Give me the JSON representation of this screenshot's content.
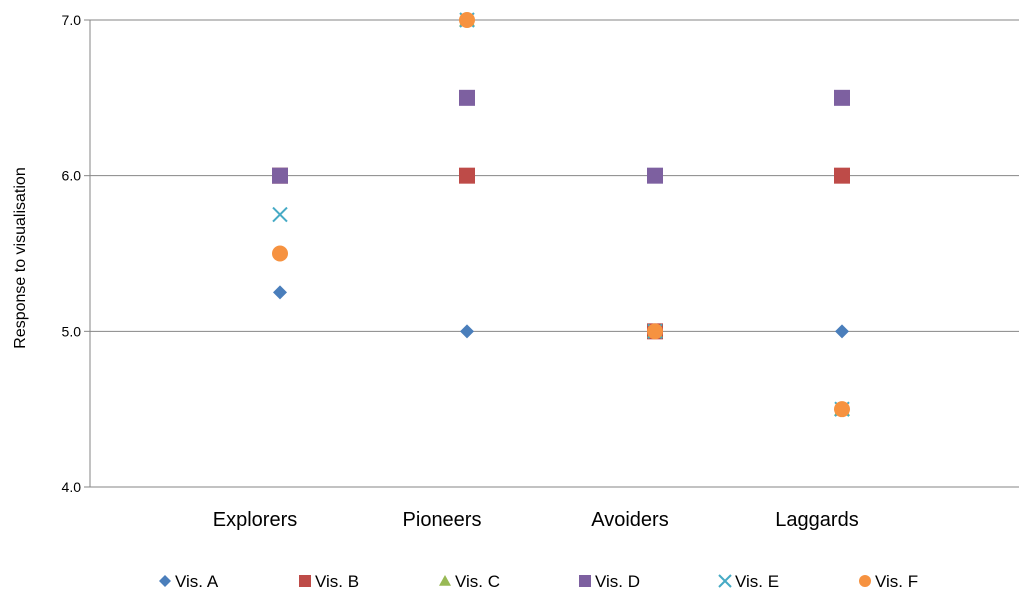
{
  "chart_data": {
    "type": "scatter",
    "title": "",
    "xlabel": "",
    "ylabel": "Response to visualisation",
    "categories": [
      "Explorers",
      "Pioneers",
      "Avoiders",
      "Laggards"
    ],
    "ylim": [
      4.0,
      7.0
    ],
    "yticks": [
      "4.0",
      "5.0",
      "6.0",
      "7.0"
    ],
    "grid": true,
    "legend_position": "bottom",
    "series": [
      {
        "name": "Vis. A",
        "marker": "diamond",
        "color": "#4a7ebb",
        "values": [
          5.25,
          5.0,
          5.0,
          5.0
        ]
      },
      {
        "name": "Vis. B",
        "marker": "square",
        "color": "#be4b48",
        "values": [
          6.0,
          6.0,
          5.0,
          6.0
        ]
      },
      {
        "name": "Vis. C",
        "marker": "triangle",
        "color": "#98b954",
        "values": [
          6.0,
          7.0,
          5.0,
          4.5
        ]
      },
      {
        "name": "Vis. D",
        "marker": "square",
        "color": "#7d60a0",
        "values": [
          6.0,
          6.5,
          6.0,
          6.5
        ]
      },
      {
        "name": "Vis. E",
        "marker": "x",
        "color": "#46aac5",
        "values": [
          5.75,
          7.0,
          5.0,
          4.5
        ]
      },
      {
        "name": "Vis. F",
        "marker": "circle",
        "color": "#f69240",
        "values": [
          5.5,
          7.0,
          5.0,
          4.5
        ]
      }
    ]
  }
}
